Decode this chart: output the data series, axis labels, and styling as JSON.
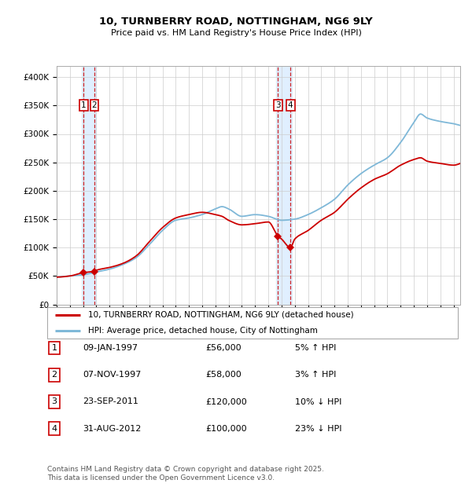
{
  "title": "10, TURNBERRY ROAD, NOTTINGHAM, NG6 9LY",
  "subtitle": "Price paid vs. HM Land Registry's House Price Index (HPI)",
  "hpi_color": "#7fb8d8",
  "price_color": "#cc0000",
  "sale_marker_color": "#cc0000",
  "vspan_color": "#ddeeff",
  "dashed_color": "#cc0000",
  "background_color": "#ffffff",
  "grid_color": "#cccccc",
  "ylim": [
    0,
    420000
  ],
  "yticks": [
    0,
    50000,
    100000,
    150000,
    200000,
    250000,
    300000,
    350000,
    400000
  ],
  "ytick_labels": [
    "£0",
    "£50K",
    "£100K",
    "£150K",
    "£200K",
    "£250K",
    "£300K",
    "£350K",
    "£400K"
  ],
  "sale_events": [
    {
      "id": 1,
      "date_str": "09-JAN-1997",
      "year": 1997.03,
      "price": 56000,
      "pct": "5%",
      "dir": "↑"
    },
    {
      "id": 2,
      "date_str": "07-NOV-1997",
      "year": 1997.85,
      "price": 58000,
      "pct": "3%",
      "dir": "↑"
    },
    {
      "id": 3,
      "date_str": "23-SEP-2011",
      "year": 2011.73,
      "price": 120000,
      "pct": "10%",
      "dir": "↓"
    },
    {
      "id": 4,
      "date_str": "31-AUG-2012",
      "year": 2012.67,
      "price": 100000,
      "pct": "23%",
      "dir": "↓"
    }
  ],
  "legend_line1": "10, TURNBERRY ROAD, NOTTINGHAM, NG6 9LY (detached house)",
  "legend_line2": "HPI: Average price, detached house, City of Nottingham",
  "footnote": "Contains HM Land Registry data © Crown copyright and database right 2025.\nThis data is licensed under the Open Government Licence v3.0.",
  "xlim_start": 1995.0,
  "xlim_end": 2025.5,
  "hpi_keypoints": [
    [
      1995.0,
      48000
    ],
    [
      1996.0,
      50000
    ],
    [
      1997.0,
      52000
    ],
    [
      1998.0,
      57000
    ],
    [
      1999.0,
      62000
    ],
    [
      2000.0,
      70000
    ],
    [
      2001.0,
      82000
    ],
    [
      2002.0,
      105000
    ],
    [
      2003.0,
      130000
    ],
    [
      2004.0,
      148000
    ],
    [
      2005.0,
      152000
    ],
    [
      2006.0,
      158000
    ],
    [
      2007.0,
      168000
    ],
    [
      2007.5,
      172000
    ],
    [
      2008.0,
      168000
    ],
    [
      2009.0,
      155000
    ],
    [
      2010.0,
      158000
    ],
    [
      2011.0,
      155000
    ],
    [
      2012.0,
      148000
    ],
    [
      2013.0,
      150000
    ],
    [
      2014.0,
      158000
    ],
    [
      2015.0,
      170000
    ],
    [
      2016.0,
      185000
    ],
    [
      2017.0,
      210000
    ],
    [
      2018.0,
      230000
    ],
    [
      2019.0,
      245000
    ],
    [
      2020.0,
      258000
    ],
    [
      2021.0,
      285000
    ],
    [
      2022.0,
      320000
    ],
    [
      2022.5,
      335000
    ],
    [
      2023.0,
      328000
    ],
    [
      2024.0,
      322000
    ],
    [
      2025.0,
      318000
    ],
    [
      2025.5,
      315000
    ]
  ],
  "price_keypoints": [
    [
      1995.0,
      48000
    ],
    [
      1996.0,
      50000
    ],
    [
      1997.03,
      56000
    ],
    [
      1997.85,
      58000
    ],
    [
      1998.0,
      60000
    ],
    [
      1999.0,
      65000
    ],
    [
      2000.0,
      72000
    ],
    [
      2001.0,
      85000
    ],
    [
      2002.0,
      110000
    ],
    [
      2003.0,
      135000
    ],
    [
      2004.0,
      152000
    ],
    [
      2005.0,
      158000
    ],
    [
      2006.0,
      162000
    ],
    [
      2007.0,
      158000
    ],
    [
      2007.5,
      155000
    ],
    [
      2008.0,
      148000
    ],
    [
      2009.0,
      140000
    ],
    [
      2010.0,
      142000
    ],
    [
      2011.0,
      145000
    ],
    [
      2011.73,
      120000
    ],
    [
      2012.0,
      115000
    ],
    [
      2012.67,
      100000
    ],
    [
      2013.0,
      115000
    ],
    [
      2014.0,
      130000
    ],
    [
      2015.0,
      148000
    ],
    [
      2016.0,
      162000
    ],
    [
      2017.0,
      185000
    ],
    [
      2018.0,
      205000
    ],
    [
      2019.0,
      220000
    ],
    [
      2020.0,
      230000
    ],
    [
      2021.0,
      245000
    ],
    [
      2022.0,
      255000
    ],
    [
      2022.5,
      258000
    ],
    [
      2023.0,
      252000
    ],
    [
      2024.0,
      248000
    ],
    [
      2025.0,
      245000
    ],
    [
      2025.5,
      248000
    ]
  ]
}
